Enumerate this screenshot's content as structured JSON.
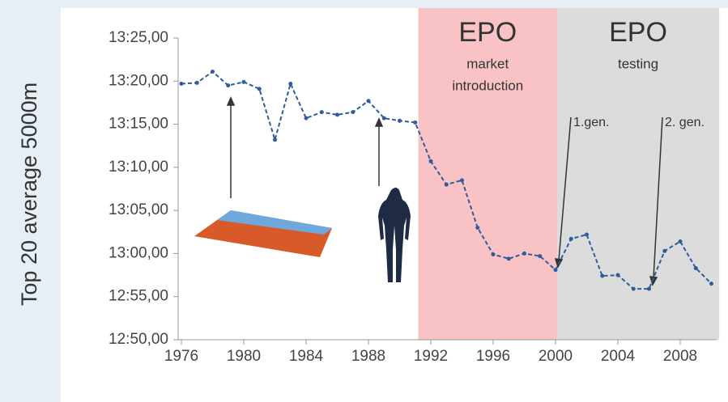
{
  "chart_data": {
    "type": "line",
    "y_label": "Top 20 average 5000m",
    "x": [
      1976,
      1977,
      1978,
      1979,
      1980,
      1981,
      1982,
      1983,
      1984,
      1985,
      1986,
      1987,
      1988,
      1989,
      1990,
      1991,
      1992,
      1993,
      1994,
      1995,
      1996,
      1997,
      1998,
      1999,
      2000,
      2001,
      2002,
      2003,
      2004,
      2005,
      2006,
      2007,
      2008,
      2009,
      2010
    ],
    "series": [
      {
        "name": "Top 20 average 5000m",
        "color": "#2f5d9c",
        "values": [
          799.7,
          799.8,
          801.1,
          799.5,
          799.9,
          799.1,
          793.2,
          799.7,
          795.7,
          796.4,
          796.1,
          796.4,
          797.7,
          795.7,
          795.4,
          795.2,
          790.7,
          788.0,
          788.5,
          783.0,
          779.9,
          779.4,
          780.0,
          779.7,
          778.1,
          781.7,
          782.2,
          777.4,
          777.5,
          775.9,
          775.9,
          780.3,
          781.4,
          778.3,
          776.5
        ]
      }
    ],
    "xlim": [
      1976,
      2010
    ],
    "xticks": [
      1976,
      1980,
      1984,
      1988,
      1992,
      1996,
      2000,
      2004,
      2008
    ],
    "ylim": [
      770,
      805
    ],
    "yticks": [
      {
        "value": 770,
        "label": "12:50,00"
      },
      {
        "value": 775,
        "label": "12:55,00"
      },
      {
        "value": 780,
        "label": "13:00,00"
      },
      {
        "value": 785,
        "label": "13:05,00"
      },
      {
        "value": 790,
        "label": "13:10,00"
      },
      {
        "value": 795,
        "label": "13:15,00"
      },
      {
        "value": 800,
        "label": "13:20,00"
      },
      {
        "value": 805,
        "label": "13:25,00"
      }
    ],
    "shaded_regions": [
      {
        "start": 1991.2,
        "end": 2000.1,
        "color": "#f9c3c6",
        "title": "EPO",
        "lines": [
          "market",
          "introduction"
        ]
      },
      {
        "start": 2000.1,
        "end": 2010.5,
        "color": "#dcdcdc",
        "title": "EPO",
        "lines": [
          "testing"
        ]
      }
    ],
    "annotations": [
      "1.gen.",
      "2. gen."
    ]
  }
}
